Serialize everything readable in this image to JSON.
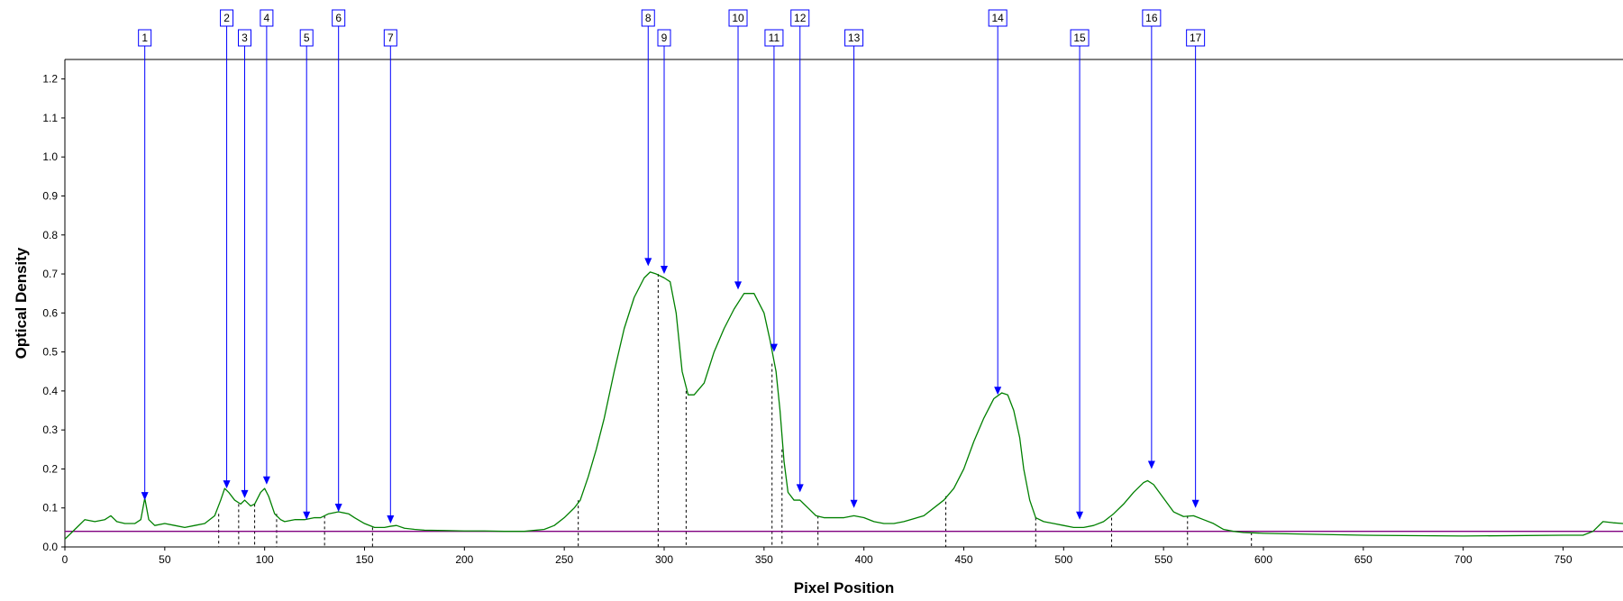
{
  "chart_data": {
    "type": "line",
    "xlabel": "Pixel Position",
    "ylabel": "Optical Density",
    "xlim": [
      0,
      780
    ],
    "ylim": [
      0,
      1.25
    ],
    "x_ticks": [
      0,
      50,
      100,
      150,
      200,
      250,
      300,
      350,
      400,
      450,
      500,
      550,
      600,
      650,
      700,
      750
    ],
    "x_tick_labels": [
      "0",
      "50",
      "100",
      "150",
      "200",
      "250",
      "300",
      "350",
      "400",
      "450",
      "500",
      "550",
      "600",
      "650",
      "700",
      "750"
    ],
    "y_ticks": [
      0,
      0.1,
      0.2,
      0.3,
      0.4,
      0.5,
      0.6,
      0.7,
      0.8,
      0.9,
      1.0,
      1.1,
      1.2
    ],
    "y_tick_labels": [
      "0.0",
      "0.1",
      "0.2",
      "0.3",
      "0.4",
      "0.5",
      "0.6",
      "0.7",
      "0.8",
      "0.9",
      "1.0",
      "1.1",
      "1.2"
    ],
    "grid": false,
    "series": [
      {
        "color": "#008000",
        "x": [
          0,
          3,
          6,
          10,
          15,
          20,
          23,
          26,
          30,
          35,
          38,
          40,
          42,
          45,
          50,
          55,
          60,
          65,
          70,
          75,
          78,
          80,
          82,
          85,
          88,
          90,
          93,
          95,
          98,
          100,
          102,
          105,
          108,
          110,
          115,
          120,
          125,
          128,
          132,
          137,
          142,
          145,
          150,
          155,
          160,
          163,
          166,
          170,
          175,
          180,
          190,
          200,
          210,
          220,
          230,
          240,
          245,
          250,
          255,
          258,
          262,
          266,
          270,
          275,
          280,
          285,
          290,
          293,
          296,
          300,
          303,
          306,
          309,
          312,
          315,
          320,
          325,
          330,
          335,
          340,
          345,
          350,
          353,
          356,
          358,
          360,
          362,
          365,
          368,
          372,
          376,
          380,
          385,
          390,
          395,
          400,
          405,
          410,
          415,
          420,
          430,
          440,
          445,
          450,
          455,
          460,
          465,
          469,
          472,
          475,
          478,
          480,
          483,
          486,
          490,
          495,
          500,
          505,
          510,
          515,
          520,
          525,
          530,
          535,
          540,
          542,
          545,
          550,
          555,
          560,
          565,
          570,
          575,
          580,
          585,
          590,
          600,
          620,
          650,
          700,
          750,
          760,
          765,
          770,
          775,
          780
        ],
        "y": [
          0.02,
          0.035,
          0.05,
          0.07,
          0.065,
          0.07,
          0.08,
          0.065,
          0.06,
          0.06,
          0.07,
          0.125,
          0.07,
          0.055,
          0.06,
          0.055,
          0.05,
          0.055,
          0.06,
          0.08,
          0.12,
          0.15,
          0.14,
          0.12,
          0.11,
          0.12,
          0.105,
          0.11,
          0.14,
          0.15,
          0.13,
          0.085,
          0.07,
          0.065,
          0.07,
          0.07,
          0.075,
          0.075,
          0.085,
          0.09,
          0.085,
          0.075,
          0.06,
          0.05,
          0.05,
          0.053,
          0.055,
          0.048,
          0.045,
          0.043,
          0.042,
          0.041,
          0.041,
          0.04,
          0.04,
          0.045,
          0.055,
          0.075,
          0.1,
          0.12,
          0.18,
          0.25,
          0.33,
          0.45,
          0.56,
          0.64,
          0.69,
          0.705,
          0.7,
          0.69,
          0.68,
          0.6,
          0.45,
          0.39,
          0.39,
          0.42,
          0.5,
          0.56,
          0.61,
          0.65,
          0.65,
          0.6,
          0.53,
          0.45,
          0.35,
          0.22,
          0.14,
          0.12,
          0.12,
          0.1,
          0.08,
          0.075,
          0.075,
          0.075,
          0.08,
          0.075,
          0.065,
          0.06,
          0.06,
          0.065,
          0.08,
          0.12,
          0.15,
          0.2,
          0.27,
          0.33,
          0.38,
          0.395,
          0.39,
          0.35,
          0.28,
          0.2,
          0.12,
          0.075,
          0.065,
          0.06,
          0.055,
          0.05,
          0.05,
          0.055,
          0.065,
          0.085,
          0.11,
          0.14,
          0.165,
          0.17,
          0.16,
          0.125,
          0.09,
          0.078,
          0.08,
          0.07,
          0.06,
          0.045,
          0.04,
          0.037,
          0.035,
          0.033,
          0.03,
          0.028,
          0.03,
          0.03,
          0.04,
          0.065,
          0.062,
          0.06
        ]
      },
      {
        "color": "#800080",
        "x": [
          0,
          780
        ],
        "y": [
          0.04,
          0.04
        ]
      }
    ],
    "dashed_boundaries": [
      {
        "x": 77,
        "y": 0.085
      },
      {
        "x": 87,
        "y": 0.11
      },
      {
        "x": 95,
        "y": 0.11
      },
      {
        "x": 106,
        "y": 0.085
      },
      {
        "x": 130,
        "y": 0.08
      },
      {
        "x": 154,
        "y": 0.05
      },
      {
        "x": 257,
        "y": 0.12
      },
      {
        "x": 297,
        "y": 0.7
      },
      {
        "x": 311,
        "y": 0.4
      },
      {
        "x": 354,
        "y": 0.47
      },
      {
        "x": 359,
        "y": 0.25
      },
      {
        "x": 377,
        "y": 0.08
      },
      {
        "x": 441,
        "y": 0.13
      },
      {
        "x": 486,
        "y": 0.075
      },
      {
        "x": 524,
        "y": 0.075
      },
      {
        "x": 562,
        "y": 0.08
      },
      {
        "x": 594,
        "y": 0.037
      }
    ],
    "markers": [
      {
        "label": "1",
        "x": 40,
        "y": 0.12,
        "row": "low"
      },
      {
        "label": "2",
        "x": 81,
        "y": 0.15,
        "row": "high"
      },
      {
        "label": "3",
        "x": 90,
        "y": 0.125,
        "row": "low"
      },
      {
        "label": "4",
        "x": 101,
        "y": 0.16,
        "row": "high"
      },
      {
        "label": "5",
        "x": 121,
        "y": 0.07,
        "row": "low"
      },
      {
        "label": "6",
        "x": 137,
        "y": 0.09,
        "row": "high"
      },
      {
        "label": "7",
        "x": 163,
        "y": 0.06,
        "row": "low"
      },
      {
        "label": "8",
        "x": 292,
        "y": 0.72,
        "row": "high"
      },
      {
        "label": "9",
        "x": 300,
        "y": 0.7,
        "row": "low"
      },
      {
        "label": "10",
        "x": 337,
        "y": 0.66,
        "row": "high"
      },
      {
        "label": "11",
        "x": 355,
        "y": 0.5,
        "row": "low"
      },
      {
        "label": "12",
        "x": 368,
        "y": 0.14,
        "row": "high"
      },
      {
        "label": "13",
        "x": 395,
        "y": 0.1,
        "row": "low"
      },
      {
        "label": "14",
        "x": 467,
        "y": 0.39,
        "row": "high"
      },
      {
        "label": "15",
        "x": 508,
        "y": 0.07,
        "row": "low"
      },
      {
        "label": "16",
        "x": 544,
        "y": 0.2,
        "row": "high"
      },
      {
        "label": "17",
        "x": 566,
        "y": 0.1,
        "row": "low"
      }
    ]
  }
}
